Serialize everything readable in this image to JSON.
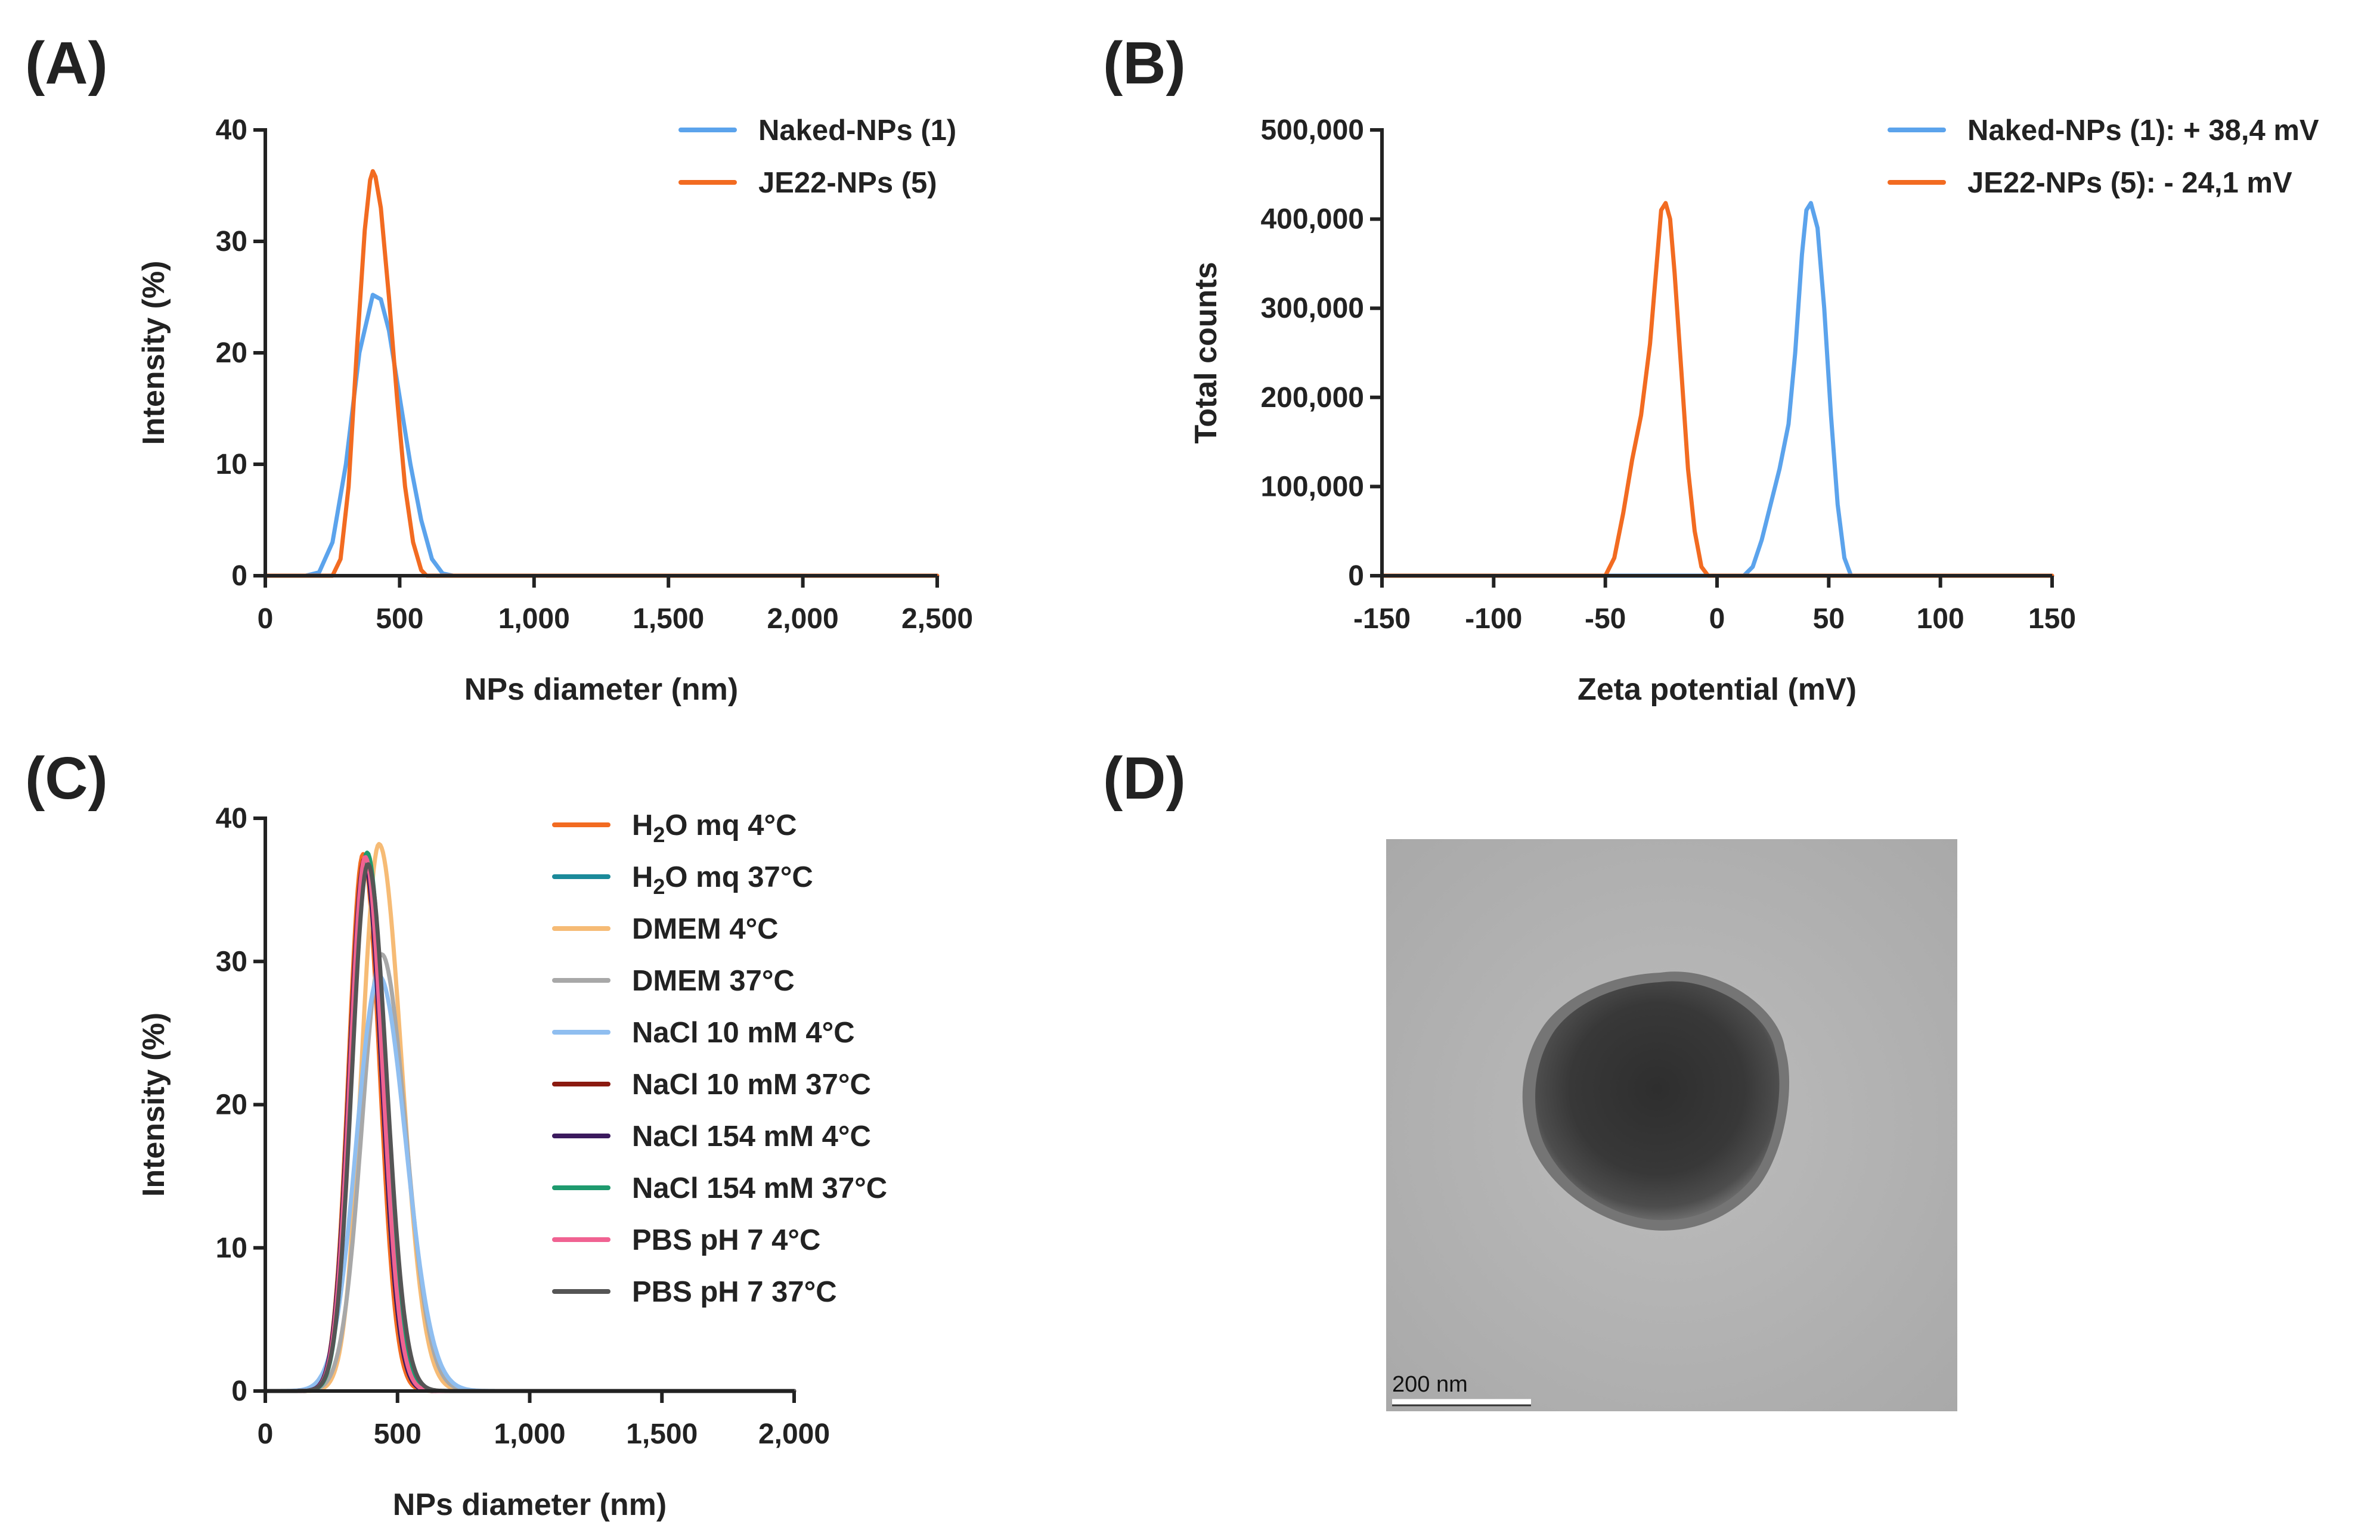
{
  "panels": [
    {
      "label": "(A)"
    },
    {
      "label": "(B)"
    },
    {
      "label": "(C)"
    },
    {
      "label": "(D)",
      "scale_bar_label": "200 nm"
    }
  ],
  "chart_data": [
    {
      "id": "A",
      "type": "line",
      "title": "",
      "xlabel": "NPs diameter (nm)",
      "ylabel": "Intensity (%)",
      "xlim": [
        0,
        2500
      ],
      "ylim": [
        0,
        40
      ],
      "xticks": [
        0,
        500,
        1000,
        1500,
        2000,
        2500
      ],
      "xtick_labels": [
        "0",
        "500",
        "1,000",
        "1,500",
        "2,000",
        "2,500"
      ],
      "yticks": [
        0,
        10,
        20,
        30,
        40
      ],
      "ytick_labels": [
        "0",
        "10",
        "20",
        "30",
        "40"
      ],
      "grid": false,
      "legend_position": "top-right",
      "series": [
        {
          "name": "Naked-NPs (1)",
          "color": "#5ba3ec",
          "x": [
            0,
            150,
            200,
            250,
            300,
            350,
            400,
            430,
            460,
            500,
            540,
            580,
            620,
            660,
            700,
            2500
          ],
          "y": [
            0,
            0,
            0.3,
            3,
            10,
            20,
            25.2,
            24.8,
            22,
            16,
            10,
            5,
            1.5,
            0.2,
            0,
            0
          ]
        },
        {
          "name": "JE22-NPs (5)",
          "color": "#f26b21",
          "x": [
            0,
            250,
            280,
            310,
            340,
            370,
            390,
            400,
            410,
            430,
            460,
            490,
            520,
            550,
            580,
            600,
            2500
          ],
          "y": [
            0,
            0,
            1.5,
            8,
            20,
            31,
            35.5,
            36.3,
            35.8,
            33,
            25,
            16,
            8,
            3,
            0.5,
            0,
            0
          ]
        }
      ]
    },
    {
      "id": "B",
      "type": "line",
      "title": "",
      "xlabel": "Zeta potential (mV)",
      "ylabel": "Total counts",
      "xlim": [
        -150,
        150
      ],
      "ylim": [
        0,
        500000
      ],
      "xticks": [
        -150,
        -100,
        -50,
        0,
        50,
        100,
        150
      ],
      "xtick_labels": [
        "-150",
        "-100",
        "-50",
        "0",
        "50",
        "100",
        "150"
      ],
      "yticks": [
        0,
        100000,
        200000,
        300000,
        400000,
        500000
      ],
      "ytick_labels": [
        "0",
        "100,000",
        "200,000",
        "300,000",
        "400,000",
        "500,000"
      ],
      "grid": false,
      "legend_position": "top-right",
      "series": [
        {
          "name": "Naked-NPs (1): + 38,4 mV",
          "color": "#5ba3ec",
          "x": [
            -150,
            12,
            16,
            20,
            24,
            28,
            32,
            35,
            38,
            40,
            42,
            45,
            48,
            51,
            54,
            57,
            60,
            150
          ],
          "y": [
            0,
            0,
            10000,
            40000,
            80000,
            120000,
            170000,
            250000,
            360000,
            410000,
            418000,
            390000,
            300000,
            180000,
            80000,
            20000,
            0,
            0
          ]
        },
        {
          "name": "JE22-NPs (5): - 24,1 mV",
          "color": "#f26b21",
          "x": [
            -150,
            -50,
            -46,
            -42,
            -38,
            -34,
            -30,
            -27,
            -25,
            -23,
            -21,
            -19,
            -16,
            -13,
            -10,
            -7,
            -4,
            150
          ],
          "y": [
            0,
            0,
            20000,
            70000,
            130000,
            180000,
            260000,
            350000,
            410000,
            418000,
            400000,
            340000,
            230000,
            120000,
            50000,
            10000,
            0,
            0
          ]
        }
      ]
    },
    {
      "id": "C",
      "type": "line",
      "title": "",
      "xlabel": "NPs diameter (nm)",
      "ylabel": "Intensity (%)",
      "xlim": [
        0,
        2000
      ],
      "ylim": [
        0,
        40
      ],
      "xticks": [
        0,
        500,
        1000,
        1500,
        2000
      ],
      "xtick_labels": [
        "0",
        "500",
        "1,000",
        "1,500",
        "2,000"
      ],
      "yticks": [
        0,
        10,
        20,
        30,
        40
      ],
      "ytick_labels": [
        "0",
        "10",
        "20",
        "30",
        "40"
      ],
      "grid": false,
      "legend_position": "right",
      "series": [
        {
          "name": "H2O mq 4°C",
          "label_base": "H",
          "label_sub": "2",
          "label_rest": "O mq 4°C",
          "color": "#f26b21",
          "peak_x": 370,
          "peak_y": 37.5,
          "sigma_l": 55,
          "sigma_r": 62
        },
        {
          "name": "H2O mq 37°C",
          "label_base": "H",
          "label_sub": "2",
          "label_rest": "O mq 37°C",
          "color": "#1b8a9a",
          "peak_x": 380,
          "peak_y": 37.0,
          "sigma_l": 58,
          "sigma_r": 68
        },
        {
          "name": "DMEM 4°C",
          "label_base": "DMEM 4°C",
          "label_sub": "",
          "label_rest": "",
          "color": "#f6bb75",
          "peak_x": 430,
          "peak_y": 38.2,
          "sigma_l": 65,
          "sigma_r": 85
        },
        {
          "name": "DMEM 37°C",
          "label_base": "DMEM 37°C",
          "label_sub": "",
          "label_rest": "",
          "color": "#a8a8a8",
          "peak_x": 440,
          "peak_y": 30.5,
          "sigma_l": 75,
          "sigma_r": 90
        },
        {
          "name": "NaCl 10 mM 4°C",
          "label_base": "NaCl 10 mM 4°C",
          "label_sub": "",
          "label_rest": "",
          "color": "#8fbef0",
          "peak_x": 430,
          "peak_y": 29.0,
          "sigma_l": 85,
          "sigma_r": 100
        },
        {
          "name": "NaCl 10 mM 37°C",
          "label_base": "NaCl 10 mM 37°C",
          "label_sub": "",
          "label_rest": "",
          "color": "#8b1a10",
          "peak_x": 375,
          "peak_y": 37.2,
          "sigma_l": 57,
          "sigma_r": 64
        },
        {
          "name": "NaCl 154 mM 4°C",
          "label_base": "NaCl 154 mM 4°C",
          "label_sub": "",
          "label_rest": "",
          "color": "#3b1a5e",
          "peak_x": 375,
          "peak_y": 37.0,
          "sigma_l": 57,
          "sigma_r": 64
        },
        {
          "name": "NaCl 154 mM 37°C",
          "label_base": "NaCl 154 mM 37°C",
          "label_sub": "",
          "label_rest": "",
          "color": "#1e9a6e",
          "peak_x": 385,
          "peak_y": 37.6,
          "sigma_l": 58,
          "sigma_r": 68
        },
        {
          "name": "PBS pH 7 4°C",
          "label_base": "PBS pH 7 4°C",
          "label_sub": "",
          "label_rest": "",
          "color": "#f06292",
          "peak_x": 378,
          "peak_y": 37.3,
          "sigma_l": 57,
          "sigma_r": 65
        },
        {
          "name": "PBS pH 7 37°C",
          "label_base": "PBS pH 7 37°C",
          "label_sub": "",
          "label_rest": "",
          "color": "#555555",
          "peak_x": 388,
          "peak_y": 36.8,
          "sigma_l": 60,
          "sigma_r": 70
        }
      ]
    }
  ]
}
